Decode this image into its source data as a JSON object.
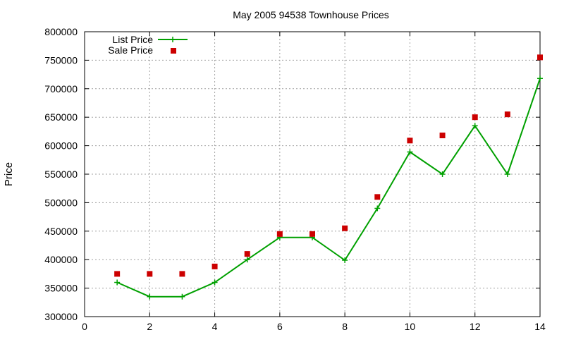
{
  "chart_data": {
    "type": "line",
    "title": "May 2005 94538 Townhouse Prices",
    "xlabel": "",
    "ylabel": "Price",
    "xlim": [
      0,
      14
    ],
    "ylim": [
      300000,
      800000
    ],
    "xticks": [
      0,
      2,
      4,
      6,
      8,
      10,
      12,
      14
    ],
    "yticks": [
      300000,
      350000,
      400000,
      450000,
      500000,
      550000,
      600000,
      650000,
      700000,
      750000,
      800000
    ],
    "grid": true,
    "legend_position": "top-left",
    "series": [
      {
        "name": "List Price",
        "style": "line-points",
        "marker": "plus",
        "color": "#00a000",
        "x": [
          1,
          2,
          3,
          4,
          5,
          6,
          7,
          8,
          9,
          10,
          11,
          12,
          13,
          14
        ],
        "values": [
          360000,
          335000,
          335000,
          360000,
          400000,
          439000,
          439000,
          399000,
          490000,
          589000,
          550000,
          635000,
          550000,
          718000
        ]
      },
      {
        "name": "Sale Price",
        "style": "points",
        "marker": "square",
        "color": "#cc0000",
        "x": [
          1,
          2,
          3,
          4,
          5,
          6,
          7,
          8,
          9,
          10,
          11,
          12,
          13,
          14
        ],
        "values": [
          375000,
          375000,
          375000,
          388000,
          410000,
          445000,
          445000,
          455000,
          510000,
          609000,
          618000,
          650000,
          655000,
          755000
        ]
      }
    ]
  }
}
